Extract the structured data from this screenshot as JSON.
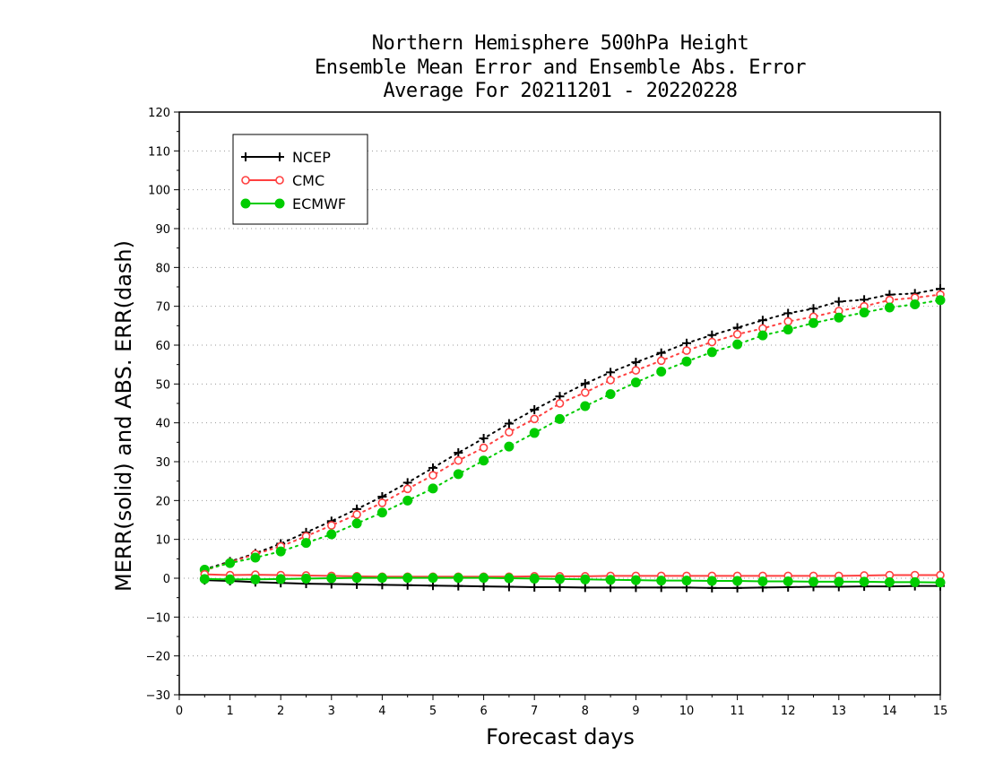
{
  "chart_data": {
    "type": "line",
    "title_lines": [
      "Northern Hemisphere 500hPa Height",
      "Ensemble Mean Error and Ensemble Abs. Error",
      "Average For 20211201 - 20220228"
    ],
    "xlabel": "Forecast days",
    "ylabel": "MERR(solid) and ABS. ERR(dash)",
    "xlim": [
      0,
      15
    ],
    "ylim": [
      -30,
      120
    ],
    "xticks": [
      0,
      1,
      2,
      3,
      4,
      5,
      6,
      7,
      8,
      9,
      10,
      11,
      12,
      13,
      14,
      15
    ],
    "yticks": [
      -30,
      -20,
      -10,
      0,
      10,
      20,
      30,
      40,
      50,
      60,
      70,
      80,
      90,
      100,
      110,
      120
    ],
    "grid": "horizontal dotted",
    "legend_position": "top-left",
    "x": [
      0.5,
      1,
      1.5,
      2,
      2.5,
      3,
      3.5,
      4,
      4.5,
      5,
      5.5,
      6,
      6.5,
      7,
      7.5,
      8,
      8.5,
      9,
      9.5,
      10,
      10.5,
      11,
      11.5,
      12,
      12.5,
      13,
      13.5,
      14,
      14.5,
      15
    ],
    "series": [
      {
        "name": "NCEP",
        "color": "#000000",
        "marker": "plus",
        "merr": [
          -0.5,
          -0.7,
          -1.0,
          -1.2,
          -1.4,
          -1.5,
          -1.6,
          -1.7,
          -1.8,
          -1.9,
          -2.0,
          -2.1,
          -2.2,
          -2.3,
          -2.3,
          -2.4,
          -2.4,
          -2.4,
          -2.4,
          -2.4,
          -2.5,
          -2.5,
          -2.4,
          -2.3,
          -2.2,
          -2.2,
          -2.1,
          -2.1,
          -2.0,
          -2.0
        ],
        "abs_err": [
          2.3,
          4.3,
          6.4,
          8.9,
          11.8,
          14.7,
          17.8,
          21.0,
          24.6,
          28.4,
          32.3,
          36.0,
          39.8,
          43.4,
          46.8,
          50.1,
          53.0,
          55.6,
          58.0,
          60.5,
          62.6,
          64.5,
          66.4,
          68.2,
          69.4,
          71.2,
          71.7,
          73.0,
          73.3,
          74.5
        ]
      },
      {
        "name": "CMC",
        "color": "#ff4040",
        "marker": "open-circle",
        "merr": [
          1.0,
          0.8,
          0.9,
          0.8,
          0.7,
          0.6,
          0.5,
          0.4,
          0.4,
          0.4,
          0.4,
          0.4,
          0.4,
          0.5,
          0.5,
          0.5,
          0.6,
          0.6,
          0.6,
          0.6,
          0.6,
          0.6,
          0.6,
          0.6,
          0.6,
          0.6,
          0.7,
          0.8,
          0.8,
          0.8
        ],
        "abs_err": [
          2.0,
          4.1,
          6.2,
          8.2,
          10.8,
          13.6,
          16.4,
          19.4,
          23.0,
          26.5,
          30.3,
          33.6,
          37.6,
          41.0,
          45.0,
          47.8,
          51.0,
          53.5,
          56.0,
          58.6,
          60.8,
          62.8,
          64.3,
          66.1,
          67.3,
          68.8,
          70.0,
          71.6,
          72.2,
          73.0
        ]
      },
      {
        "name": "ECMWF",
        "color": "#00cc00",
        "marker": "filled-circle",
        "merr": [
          -0.2,
          -0.3,
          -0.3,
          -0.2,
          -0.1,
          0.0,
          0.1,
          0.1,
          0.1,
          0.1,
          0.1,
          0.1,
          0.0,
          -0.1,
          -0.2,
          -0.3,
          -0.4,
          -0.5,
          -0.6,
          -0.6,
          -0.7,
          -0.7,
          -0.8,
          -0.8,
          -0.9,
          -0.9,
          -0.9,
          -1.0,
          -1.0,
          -1.1
        ],
        "abs_err": [
          2.2,
          3.9,
          5.3,
          6.9,
          9.1,
          11.3,
          14.1,
          16.9,
          20.0,
          23.1,
          26.8,
          30.3,
          33.9,
          37.4,
          41.0,
          44.3,
          47.4,
          50.4,
          53.2,
          55.8,
          58.2,
          60.2,
          62.5,
          64.0,
          65.7,
          67.1,
          68.4,
          69.7,
          70.5,
          71.6
        ]
      }
    ]
  }
}
